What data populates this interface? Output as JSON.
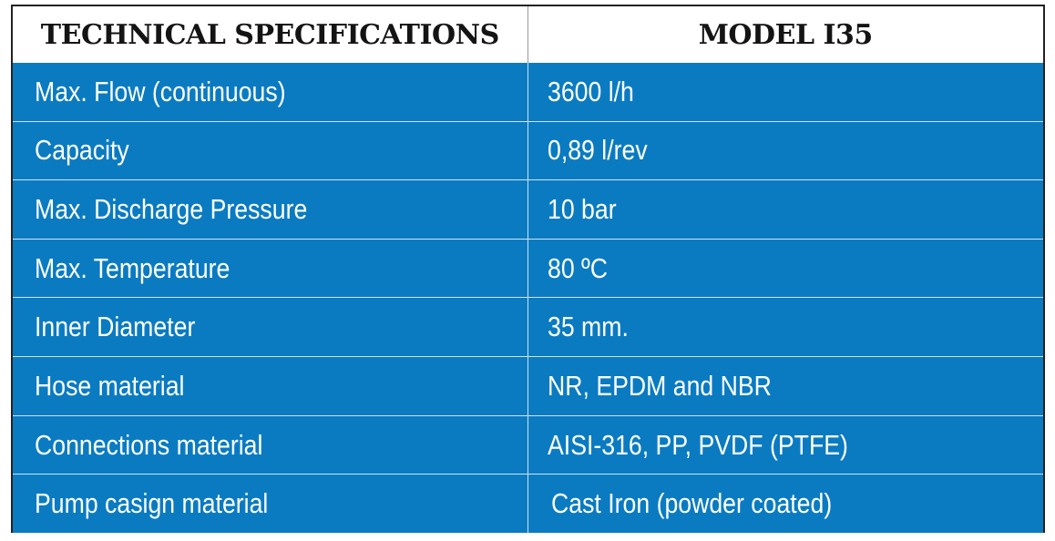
{
  "table": {
    "header": {
      "col1": "TECHNICAL SPECIFICATIONS",
      "col2": "MODEL I35"
    },
    "rows": [
      {
        "label": "Max. Flow (continuous)",
        "value": "3600 l/h"
      },
      {
        "label": "Capacity",
        "value": "0,89 l/rev"
      },
      {
        "label": "Max. Discharge Pressure",
        "value": "10 bar"
      },
      {
        "label": "Max. Temperature",
        "value": "80 ºC"
      },
      {
        "label": "Inner Diameter",
        "value": "35 mm."
      },
      {
        "label": "Hose material",
        "value": "NR, EPDM and NBR"
      },
      {
        "label": "Connections material",
        "value": "AISI-316, PP, PVDF (PTFE)"
      },
      {
        "label": "Pump casign material",
        "value": "Cast Iron (powder coated)"
      }
    ]
  },
  "colors": {
    "row_background": "#0a7bc1",
    "row_text": "#ffffff",
    "header_background": "#ffffff",
    "header_text": "#141414"
  }
}
